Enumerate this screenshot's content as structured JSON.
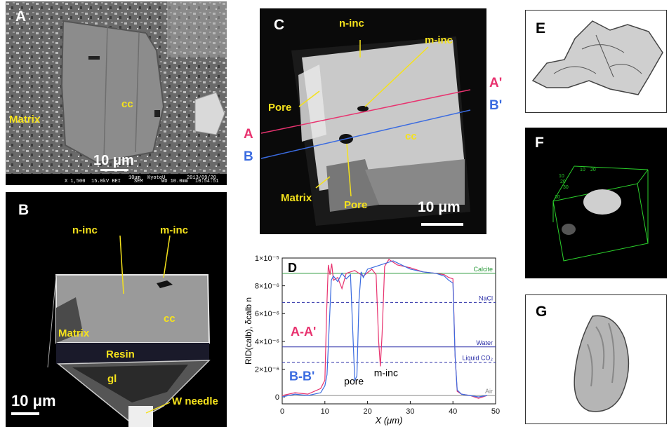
{
  "panels": {
    "a": {
      "letter": "A",
      "matrix": "Matrix",
      "cc": "cc",
      "scale": "10 μm",
      "footer_left": "X 1,500",
      "footer_mid": "15.0kV BEI",
      "footer_sem": "SEM",
      "footer_scale": "10μm",
      "footer_inst": "KyotoU",
      "footer_wd": "WD 10.0mm",
      "footer_date": "2013/09/20",
      "footer_time": "10:54:51"
    },
    "b": {
      "letter": "B",
      "ninc": "n-inc",
      "minc": "m-inc",
      "matrix": "Matrix",
      "cc": "cc",
      "resin": "Resin",
      "gl": "gl",
      "scale": "10 μm",
      "needle": "W needle"
    },
    "c": {
      "letter": "C",
      "ninc": "n-inc",
      "minc": "m-inc",
      "pore1": "Pore",
      "pore2": "Pore",
      "cc": "cc",
      "matrix": "Matrix",
      "scale": "10 μm",
      "a": "A",
      "a_prime": "A'",
      "b": "B",
      "b_prime": "B'"
    },
    "e": {
      "letter": "E"
    },
    "f": {
      "letter": "F",
      "axis_ticks": [
        "10",
        "20",
        "30",
        "10",
        "20",
        "10"
      ]
    },
    "g": {
      "letter": "G"
    }
  },
  "colors": {
    "label_yellow": "#f5e21c",
    "line_a": "#e8336f",
    "line_b": "#3a6be0",
    "calcite": "#2a9a3a",
    "navy": "#2b2fa8"
  },
  "chart_data": {
    "type": "line",
    "panel_letter": "D",
    "ylabel": "RID(calb), δcalb n",
    "xlabel": "X (μm)",
    "xlim": [
      0,
      50
    ],
    "ylim": [
      -5e-07,
      1e-05
    ],
    "x_ticks": [
      "0",
      "10",
      "20",
      "30",
      "40",
      "50"
    ],
    "y_ticks": [
      "0",
      "2×10⁻⁶",
      "4×10⁻⁶",
      "6×10⁻⁶",
      "8×10⁻⁶",
      "1×10⁻⁵"
    ],
    "reference_lines": [
      {
        "name": "Calcite",
        "value": 8.9e-06,
        "style": "solid",
        "color": "#2a9a3a"
      },
      {
        "name": "NaCl",
        "value": 6.8e-06,
        "style": "dashed",
        "color": "#2b2fa8"
      },
      {
        "name": "Water",
        "value": 3.6e-06,
        "style": "solid",
        "color": "#2b2fa8"
      },
      {
        "name": "Liquid CO₂",
        "value": 2.5e-06,
        "style": "dashed",
        "color": "#2b2fa8"
      },
      {
        "name": "Air",
        "value": 1e-07,
        "style": "solid",
        "color": "#888888"
      }
    ],
    "series": [
      {
        "name": "A-A'",
        "color": "#e8336f",
        "x": [
          0,
          3,
          6,
          9,
          10,
          10.4,
          10.8,
          11.2,
          11.6,
          12,
          13,
          14,
          15,
          17,
          19,
          21,
          22,
          22.6,
          23,
          23.4,
          24,
          25,
          27,
          30,
          33,
          36,
          38,
          39,
          40,
          40.5,
          41,
          42,
          44,
          46,
          48
        ],
        "y": [
          1e-07,
          3e-07,
          2e-07,
          6e-07,
          1.2e-06,
          6e-06,
          9.5e-06,
          8.8e-06,
          9.6e-06,
          8.4e-06,
          8.6e-06,
          7.8e-06,
          8.9e-06,
          9.1e-06,
          8.7e-06,
          9.2e-06,
          8.8e-06,
          4e-06,
          2.2e-06,
          4.5e-06,
          9.4e-06,
          9.9e-06,
          9.5e-06,
          9.3e-06,
          9e-06,
          8.9e-06,
          8.8e-06,
          8.6e-06,
          8.5e-06,
          3e-06,
          4e-07,
          2e-07,
          1e-07,
          -1e-07,
          1e-07
        ]
      },
      {
        "name": "B-B'",
        "color": "#3a6be0",
        "x": [
          0,
          3,
          6,
          9,
          10,
          10.5,
          11,
          11.5,
          12,
          13,
          14,
          15,
          16,
          16.5,
          17,
          17.5,
          18,
          18.5,
          19,
          20,
          22,
          24,
          26,
          28,
          30,
          33,
          36,
          38,
          39,
          40,
          40.5,
          41,
          42,
          44,
          46,
          48
        ],
        "y": [
          0.0,
          2e-07,
          1e-07,
          3e-07,
          8e-07,
          1.6e-06,
          5e-06,
          8.4e-06,
          8.7e-06,
          8.3e-06,
          8.9e-06,
          8.5e-06,
          8.8e-06,
          5e-06,
          1.2e-06,
          1.5e-06,
          7e-06,
          9e-06,
          8.6e-06,
          9.2e-06,
          9.4e-06,
          9.6e-06,
          9.8e-06,
          9.5e-06,
          9.2e-06,
          9e-06,
          8.9e-06,
          8.7e-06,
          8.4e-06,
          8.2e-06,
          3e-06,
          5e-07,
          2e-07,
          1e-07,
          0.0,
          1e-07
        ]
      }
    ],
    "annotations": [
      "pore",
      "m-inc"
    ]
  }
}
